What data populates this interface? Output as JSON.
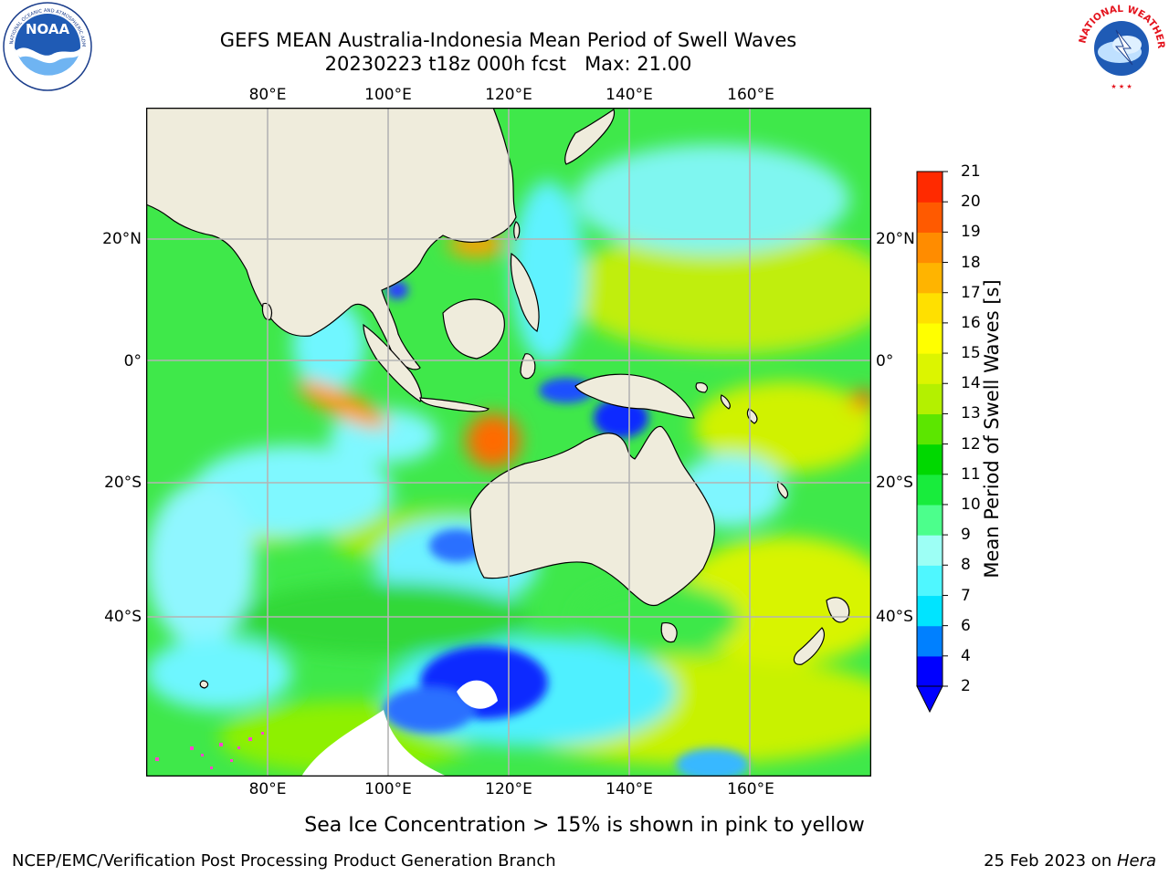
{
  "header": {
    "title_line1": "GEFS MEAN Australia-Indonesia Mean Period of Swell Waves",
    "title_line2": "20230223 t18z 000h fcst   Max: 21.00"
  },
  "logos": {
    "left_name": "NOAA",
    "left_text": "NATIONAL OCEANIC AND ATMOSPHERIC ADMINISTRATION · U.S. DEPARTMENT OF COMMERCE",
    "right_text": "NATIONAL WEATHER SERVICE"
  },
  "map": {
    "lon_labels": [
      "80°E",
      "100°E",
      "120°E",
      "140°E",
      "160°E"
    ],
    "lat_labels": [
      "20°N",
      "0°",
      "20°S",
      "40°S"
    ],
    "colors": {
      "land": "#efecdc",
      "grid": "#b4b4b4",
      "ice_pink": "#ff44cc"
    }
  },
  "colorbar": {
    "label": "Mean Period of Swell Waves [s]",
    "levels": [
      "2",
      "4",
      "6",
      "7",
      "8",
      "9",
      "10",
      "11",
      "12",
      "13",
      "14",
      "15",
      "16",
      "17",
      "18",
      "19",
      "20",
      "21"
    ],
    "colors": [
      "#0000ff",
      "#0080ff",
      "#00e4ff",
      "#4ff7ff",
      "#9dfff5",
      "#4cff8c",
      "#18ec3c",
      "#00d800",
      "#5ce600",
      "#b4f000",
      "#dcf500",
      "#ffff00",
      "#ffe000",
      "#ffb400",
      "#ff8c00",
      "#ff5a00",
      "#ff2a00"
    ],
    "extend_color": "#0000ff"
  },
  "footer": {
    "note": "Sea Ice Concentration > 15% is shown in pink to yellow",
    "credit": "NCEP/EMC/Verification Post Processing Product Generation Branch",
    "date_prefix": "25 Feb 2023 on ",
    "date_host": "Hera"
  }
}
